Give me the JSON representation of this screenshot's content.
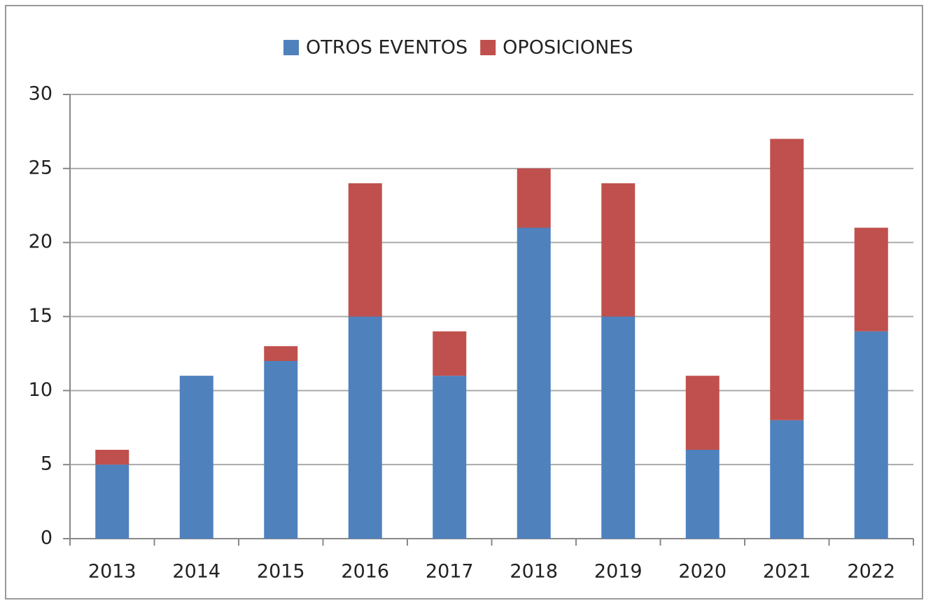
{
  "chart_data": {
    "type": "bar",
    "stacked": true,
    "categories": [
      "2013",
      "2014",
      "2015",
      "2016",
      "2017",
      "2018",
      "2019",
      "2020",
      "2021",
      "2022"
    ],
    "series": [
      {
        "name": "OTROS EVENTOS",
        "color": "#4f81bd",
        "values": [
          5,
          11,
          12,
          15,
          11,
          21,
          15,
          6,
          8,
          14
        ]
      },
      {
        "name": "OPOSICIONES",
        "color": "#c0504d",
        "values": [
          1,
          0,
          1,
          9,
          3,
          4,
          9,
          5,
          19,
          7
        ]
      }
    ],
    "ylim": [
      0,
      30
    ],
    "yticks": [
      0,
      5,
      10,
      15,
      20,
      25,
      30
    ],
    "grid": true,
    "legend": "top"
  }
}
